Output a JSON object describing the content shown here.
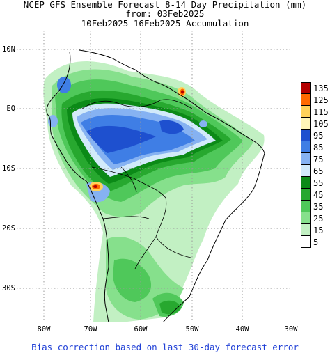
{
  "title": {
    "line1": "NCEP GFS Ensemble Forecast 8-14 Day Precipitation (mm)",
    "line2": "from: 03Feb2025",
    "line3": "10Feb2025-16Feb2025 Accumulation"
  },
  "lat_labels": [
    "10N",
    "EQ",
    "10S",
    "20S",
    "30S"
  ],
  "lon_labels": [
    "80W",
    "70W",
    "60W",
    "50W",
    "40W",
    "30W"
  ],
  "legend": [
    {
      "label": "135",
      "color": "#b40000"
    },
    {
      "label": "125",
      "color": "#ff6a00"
    },
    {
      "label": "115",
      "color": "#ffd25a"
    },
    {
      "label": "105",
      "color": "#fff6b8"
    },
    {
      "label": "95",
      "color": "#1e50cf"
    },
    {
      "label": "85",
      "color": "#3f7ee5"
    },
    {
      "label": "75",
      "color": "#86b2f2"
    },
    {
      "label": "65",
      "color": "#d2eafa"
    },
    {
      "label": "55",
      "color": "#0b8a17"
    },
    {
      "label": "45",
      "color": "#27a82f"
    },
    {
      "label": "35",
      "color": "#4fc85a"
    },
    {
      "label": "25",
      "color": "#86e08c"
    },
    {
      "label": "15",
      "color": "#c2f0c3"
    },
    {
      "label": "5",
      "color": "#ffffff"
    }
  ],
  "footer": "Bias correction based on last 30-day forecast error"
}
